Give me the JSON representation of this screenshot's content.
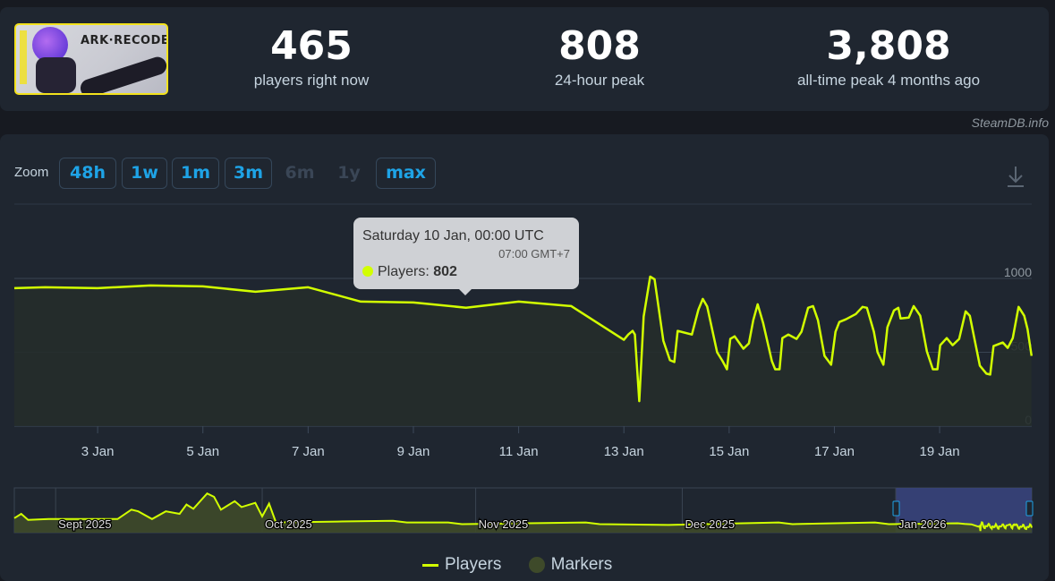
{
  "header": {
    "game_logo_text": "ARK·RECODE",
    "stats": [
      {
        "value": "465",
        "label": "players right now"
      },
      {
        "value": "808",
        "label": "24-hour peak"
      },
      {
        "value": "3,808",
        "label": "all-time peak 4 months ago"
      }
    ],
    "credit": "SteamDB.info"
  },
  "zoom": {
    "label": "Zoom",
    "buttons": [
      {
        "label": "48h",
        "enabled": true
      },
      {
        "label": "1w",
        "enabled": true
      },
      {
        "label": "1m",
        "enabled": true
      },
      {
        "label": "3m",
        "enabled": true
      },
      {
        "label": "6m",
        "enabled": false
      },
      {
        "label": "1y",
        "enabled": false
      },
      {
        "label": "max",
        "enabled": true
      }
    ],
    "download_icon": "download-icon"
  },
  "tooltip": {
    "title": "Saturday 10 Jan, 00:00 UTC",
    "subtitle": "07:00 GMT+7",
    "series_label": "Players: ",
    "value": "802"
  },
  "legend": {
    "players": "Players",
    "markers": "Markers"
  },
  "colors": {
    "line": "#d2ff00",
    "fill": "#2a3326",
    "accent": "#1ea3e6",
    "navigator_selection": "#3a4580"
  },
  "chart_data": {
    "type": "area",
    "title": "",
    "xlabel": "",
    "ylabel": "",
    "xlim": [
      "2026-01-01 10:00",
      "2026-01-20 18:00"
    ],
    "ylim": [
      0,
      1500
    ],
    "yticks": [
      0,
      500,
      1000
    ],
    "xticks": [
      {
        "date": "2026-01-03 00:00",
        "label": "3 Jan"
      },
      {
        "date": "2026-01-05 00:00",
        "label": "5 Jan"
      },
      {
        "date": "2026-01-07 00:00",
        "label": "7 Jan"
      },
      {
        "date": "2026-01-09 00:00",
        "label": "9 Jan"
      },
      {
        "date": "2026-01-11 00:00",
        "label": "11 Jan"
      },
      {
        "date": "2026-01-13 00:00",
        "label": "13 Jan"
      },
      {
        "date": "2026-01-15 00:00",
        "label": "15 Jan"
      },
      {
        "date": "2026-01-17 00:00",
        "label": "17 Jan"
      },
      {
        "date": "2026-01-19 00:00",
        "label": "19 Jan"
      }
    ],
    "grid": true,
    "legend": "bottom",
    "series": [
      {
        "name": "Players",
        "points": [
          [
            "2026-01-01 10:00",
            934
          ],
          [
            "2026-01-02 00:00",
            940
          ],
          [
            "2026-01-03 00:00",
            934
          ],
          [
            "2026-01-04 00:00",
            952
          ],
          [
            "2026-01-05 00:00",
            946
          ],
          [
            "2026-01-06 00:00",
            910
          ],
          [
            "2026-01-07 00:00",
            940
          ],
          [
            "2026-01-08 00:00",
            843
          ],
          [
            "2026-01-09 00:00",
            837
          ],
          [
            "2026-01-10 00:00",
            802
          ],
          [
            "2026-01-11 00:00",
            843
          ],
          [
            "2026-01-12 00:00",
            813
          ],
          [
            "2026-01-13 00:00",
            584
          ],
          [
            "2026-01-13 02:00",
            620
          ],
          [
            "2026-01-13 04:00",
            645
          ],
          [
            "2026-01-13 05:00",
            620
          ],
          [
            "2026-01-13 07:00",
            169
          ],
          [
            "2026-01-13 09:00",
            741
          ],
          [
            "2026-01-13 12:00",
            1012
          ],
          [
            "2026-01-13 14:00",
            994
          ],
          [
            "2026-01-13 18:00",
            578
          ],
          [
            "2026-01-13 21:00",
            446
          ],
          [
            "2026-01-13 23:00",
            434
          ],
          [
            "2026-01-14 00:30",
            645
          ],
          [
            "2026-01-14 07:00",
            620
          ],
          [
            "2026-01-14 10:00",
            789
          ],
          [
            "2026-01-14 12:00",
            861
          ],
          [
            "2026-01-14 14:00",
            810
          ],
          [
            "2026-01-14 18:30",
            500
          ],
          [
            "2026-01-14 21:00",
            440
          ],
          [
            "2026-01-14 23:00",
            385
          ],
          [
            "2026-01-15 00:30",
            590
          ],
          [
            "2026-01-15 02:30",
            608
          ],
          [
            "2026-01-15 06:30",
            524
          ],
          [
            "2026-01-15 09:00",
            560
          ],
          [
            "2026-01-15 11:00",
            717
          ],
          [
            "2026-01-15 13:00",
            825
          ],
          [
            "2026-01-15 15:30",
            699
          ],
          [
            "2026-01-15 19:30",
            440
          ],
          [
            "2026-01-15 21:00",
            385
          ],
          [
            "2026-01-15 23:00",
            385
          ],
          [
            "2026-01-16 00:15",
            596
          ],
          [
            "2026-01-16 03:00",
            620
          ],
          [
            "2026-01-16 06:45",
            590
          ],
          [
            "2026-01-16 09:00",
            639
          ],
          [
            "2026-01-16 12:00",
            801
          ],
          [
            "2026-01-16 14:15",
            813
          ],
          [
            "2026-01-16 16:30",
            717
          ],
          [
            "2026-01-16 19:30",
            476
          ],
          [
            "2026-01-16 22:30",
            416
          ],
          [
            "2026-01-17 00:30",
            639
          ],
          [
            "2026-01-17 02:15",
            705
          ],
          [
            "2026-01-17 05:15",
            723
          ],
          [
            "2026-01-17 09:45",
            759
          ],
          [
            "2026-01-17 12:50",
            807
          ],
          [
            "2026-01-17 14:50",
            801
          ],
          [
            "2026-01-17 18:00",
            639
          ],
          [
            "2026-01-17 19:40",
            500
          ],
          [
            "2026-01-17 22:20",
            416
          ],
          [
            "2026-01-18 00:10",
            669
          ],
          [
            "2026-01-18 03:10",
            783
          ],
          [
            "2026-01-18 05:10",
            801
          ],
          [
            "2026-01-18 06:10",
            729
          ],
          [
            "2026-01-18 09:55",
            735
          ],
          [
            "2026-01-18 12:10",
            813
          ],
          [
            "2026-01-18 15:10",
            747
          ],
          [
            "2026-01-18 18:10",
            506
          ],
          [
            "2026-01-18 20:55",
            385
          ],
          [
            "2026-01-18 23:00",
            385
          ],
          [
            "2026-01-19 00:15",
            548
          ],
          [
            "2026-01-19 03:15",
            596
          ],
          [
            "2026-01-19 05:55",
            548
          ],
          [
            "2026-01-19 08:55",
            590
          ],
          [
            "2026-01-19 11:50",
            777
          ],
          [
            "2026-01-19 13:45",
            747
          ],
          [
            "2026-01-19 18:20",
            410
          ],
          [
            "2026-01-19 21:20",
            355
          ],
          [
            "2026-01-19 23:05",
            349
          ],
          [
            "2026-01-20 00:35",
            542
          ],
          [
            "2026-01-20 04:50",
            566
          ],
          [
            "2026-01-20 07:05",
            530
          ],
          [
            "2026-01-20 09:20",
            596
          ],
          [
            "2026-01-20 12:00",
            807
          ],
          [
            "2026-01-20 14:35",
            747
          ],
          [
            "2026-01-20 16:05",
            657
          ],
          [
            "2026-01-20 17:55",
            476
          ]
        ]
      }
    ],
    "navigator": {
      "xlim": [
        "2025-08-26 00:00",
        "2026-01-20 18:00"
      ],
      "ylim": [
        0,
        4000
      ],
      "labels": [
        {
          "date": "2025-09-01 00:00",
          "label": "Sept 2025"
        },
        {
          "date": "2025-10-01 00:00",
          "label": "Oct 2025"
        },
        {
          "date": "2025-11-01 00:00",
          "label": "Nov 2025"
        },
        {
          "date": "2025-12-01 00:00",
          "label": "Dec 2025"
        },
        {
          "date": "2026-01-01 00:00",
          "label": "Jan 2026"
        }
      ],
      "selection": [
        "2026-01-01 00:00",
        "2026-01-20 18:00"
      ],
      "points": [
        [
          "2025-08-26 00:00",
          1408
        ],
        [
          "2025-08-27 00:00",
          1822
        ],
        [
          "2025-08-28 00:00",
          1242
        ],
        [
          "2025-08-31 00:00",
          1325
        ],
        [
          "2025-09-10 00:00",
          1325
        ],
        [
          "2025-09-12 00:00",
          2236
        ],
        [
          "2025-09-13 00:00",
          2070
        ],
        [
          "2025-09-15 00:00",
          1325
        ],
        [
          "2025-09-17 00:00",
          2070
        ],
        [
          "2025-09-19 00:00",
          1822
        ],
        [
          "2025-09-20 00:00",
          2732
        ],
        [
          "2025-09-21 00:00",
          2318
        ],
        [
          "2025-09-23 00:00",
          3808
        ],
        [
          "2025-09-24 00:00",
          3478
        ],
        [
          "2025-09-25 00:00",
          2236
        ],
        [
          "2025-09-27 00:00",
          3064
        ],
        [
          "2025-09-28 00:00",
          2484
        ],
        [
          "2025-09-30 00:00",
          2898
        ],
        [
          "2025-10-01 00:00",
          1573
        ],
        [
          "2025-10-02 00:00",
          2815
        ],
        [
          "2025-10-03 00:00",
          994
        ],
        [
          "2025-10-12 00:00",
          1076
        ],
        [
          "2025-10-20 00:00",
          1160
        ],
        [
          "2025-10-22 00:00",
          994
        ],
        [
          "2025-10-28 00:00",
          994
        ],
        [
          "2025-10-30 00:00",
          828
        ],
        [
          "2025-11-17 00:00",
          994
        ],
        [
          "2025-11-19 00:00",
          828
        ],
        [
          "2025-11-29 00:00",
          745
        ],
        [
          "2025-12-15 00:00",
          994
        ],
        [
          "2025-12-17 00:00",
          828
        ],
        [
          "2025-12-29 00:00",
          994
        ],
        [
          "2025-12-31 00:00",
          828
        ],
        [
          "2026-01-10 00:00",
          911
        ]
      ]
    }
  }
}
